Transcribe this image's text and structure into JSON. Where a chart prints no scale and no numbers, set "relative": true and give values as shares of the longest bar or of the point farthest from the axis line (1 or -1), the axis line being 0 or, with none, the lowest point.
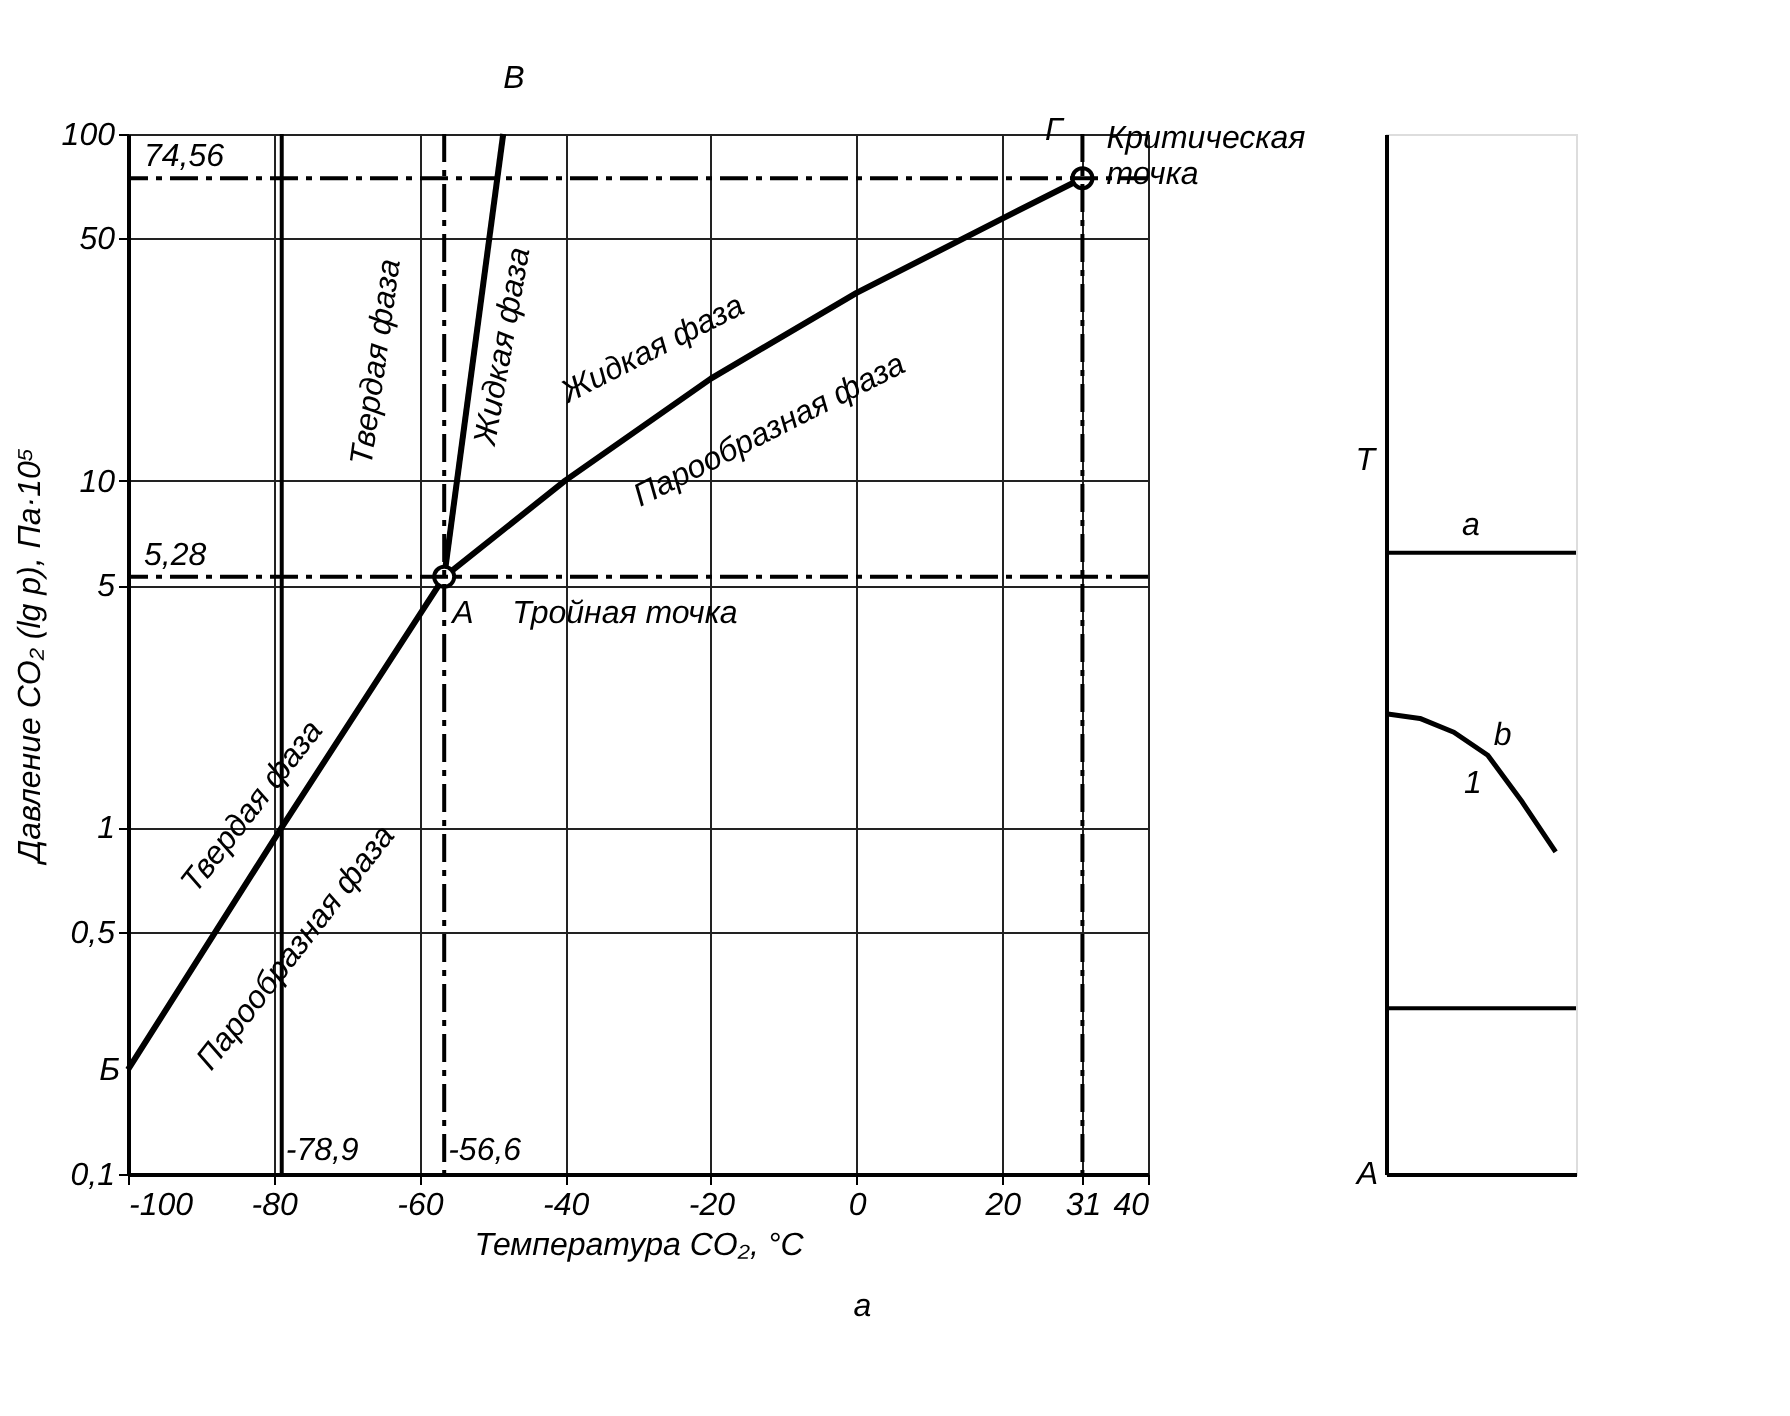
{
  "chart_data": [
    {
      "type": "line",
      "xlabel": "Температура CO₂, °C",
      "ylabel": "Давление CO₂ (lg p), Па·10⁵",
      "log": "y",
      "grid": true,
      "xlim": [
        -100,
        40
      ],
      "xticks": [
        -100,
        -80,
        -60,
        -40,
        -20,
        0,
        20,
        31,
        40
      ],
      "ylim": [
        0.1,
        100
      ],
      "yticks": [
        {
          "value": 0.1,
          "label": "0,1"
        },
        {
          "value": 0.5,
          "label": "0,5"
        },
        1,
        5,
        10,
        50,
        100
      ],
      "series": [
        {
          "x": [
            -100,
            -78.9,
            -56.6
          ],
          "values": [
            0.2,
            1,
            5.28
          ],
          "color": "#000000"
        },
        {
          "x": [
            -56.6,
            -48.5
          ],
          "values": [
            5.28,
            100
          ],
          "color": "#000000"
        },
        {
          "x": [
            -56.6,
            -40,
            -20,
            0,
            20,
            31
          ],
          "values": [
            5.28,
            10,
            19.7,
            34.8,
            57,
            74.56
          ],
          "color": "#000000"
        },
        {
          "type": "scatter",
          "marker": "circle",
          "x": [
            -56.6,
            31
          ],
          "values": [
            5.28,
            74.56
          ],
          "color": "#000000"
        }
      ],
      "ref_lines": [
        {
          "axis": "y",
          "value": 74.56,
          "label": "74,56",
          "line_style": "dashed",
          "color": "#000000"
        },
        {
          "axis": "y",
          "value": 5.28,
          "label": "5,28",
          "line_style": "dashed",
          "color": "#000000"
        },
        {
          "axis": "x",
          "value": -78.9,
          "label": "-78,9",
          "line_style": "solid",
          "color": "#000000"
        },
        {
          "axis": "x",
          "value": -56.6,
          "label": "-56,6",
          "line_style": "dashed",
          "color": "#000000"
        },
        {
          "axis": "x",
          "value": 31,
          "label": null,
          "line_style": "dashed",
          "color": "#000000"
        }
      ],
      "annotations": [
        {
          "text": "В",
          "x": -48.5,
          "y": 100
        },
        {
          "text": "А",
          "x": -56.6,
          "y": 5.28
        },
        {
          "text": "Тройная точка",
          "x": -56.6,
          "y": 5.28
        },
        {
          "text": "Б",
          "x": -100,
          "y": 0.2
        },
        {
          "text": "Г",
          "x": 31,
          "y": 74.56
        },
        {
          "text": "Критическая точка",
          "x": 31,
          "y": 74.56
        },
        "Твердая фаза",
        "Жидкая фаза",
        "Жидкая фаза",
        "Парообразная фаза",
        "Твердая фаза",
        "Парообразная фаза",
        "а"
      ]
    },
    {
      "type": "line",
      "relative": true,
      "ylabel": "T",
      "categories": [
        null,
        null,
        null,
        null,
        null,
        null
      ],
      "series": [
        {
          "values": [
            1,
            0.99,
            0.96,
            0.91,
            0.81,
            0.7
          ],
          "color": "#000000"
        }
      ],
      "ref_lines": [
        {
          "axis": "y",
          "value": 1.35,
          "color": "#000000"
        },
        {
          "axis": "y",
          "value": 0.36,
          "color": "#000000"
        }
      ],
      "annotations": [
        "A",
        "a",
        "b",
        "1"
      ]
    }
  ]
}
